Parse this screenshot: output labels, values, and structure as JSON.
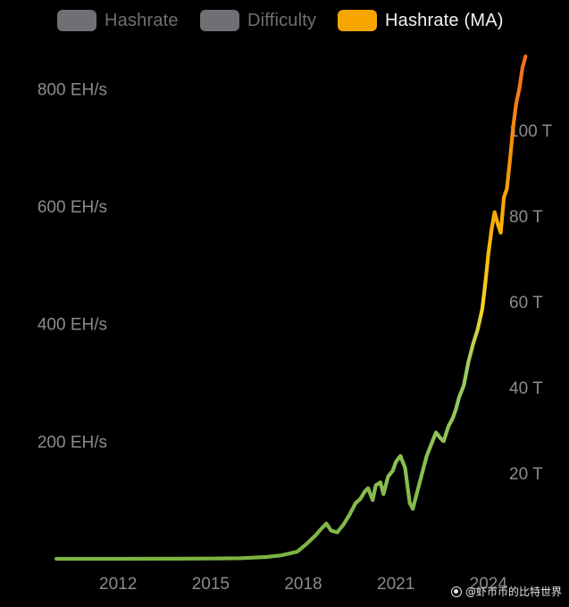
{
  "legend": {
    "hashrate": {
      "label": "Hashrate",
      "active": false,
      "color": "#6f6f74"
    },
    "difficulty": {
      "label": "Difficulty",
      "active": false,
      "color": "#6f6f74"
    },
    "hashrate_ma": {
      "label": "Hashrate (MA)",
      "active": true,
      "color": "#f7a600"
    }
  },
  "watermark": "@虾币币的比特世界",
  "chart_data": {
    "type": "line",
    "series": [
      {
        "name": "Hashrate (MA)",
        "gradient": [
          "#7cb342",
          "#9ccc65",
          "#f9d423",
          "#f7a600",
          "#f46b1e"
        ],
        "points": [
          [
            2010.0,
            0
          ],
          [
            2012.0,
            0
          ],
          [
            2014.0,
            0.2
          ],
          [
            2015.0,
            0.4
          ],
          [
            2016.0,
            1.0
          ],
          [
            2016.8,
            3
          ],
          [
            2017.3,
            6
          ],
          [
            2017.8,
            12
          ],
          [
            2018.1,
            25
          ],
          [
            2018.4,
            40
          ],
          [
            2018.6,
            52
          ],
          [
            2018.75,
            60
          ],
          [
            2018.9,
            48
          ],
          [
            2019.1,
            45
          ],
          [
            2019.3,
            58
          ],
          [
            2019.5,
            75
          ],
          [
            2019.7,
            95
          ],
          [
            2019.85,
            102
          ],
          [
            2020.0,
            115
          ],
          [
            2020.1,
            120
          ],
          [
            2020.25,
            100
          ],
          [
            2020.35,
            125
          ],
          [
            2020.5,
            130
          ],
          [
            2020.6,
            110
          ],
          [
            2020.75,
            140
          ],
          [
            2020.9,
            150
          ],
          [
            2021.0,
            165
          ],
          [
            2021.15,
            175
          ],
          [
            2021.3,
            155
          ],
          [
            2021.45,
            95
          ],
          [
            2021.55,
            85
          ],
          [
            2021.7,
            115
          ],
          [
            2021.85,
            145
          ],
          [
            2022.0,
            175
          ],
          [
            2022.15,
            195
          ],
          [
            2022.3,
            215
          ],
          [
            2022.45,
            205
          ],
          [
            2022.55,
            200
          ],
          [
            2022.7,
            225
          ],
          [
            2022.85,
            240
          ],
          [
            2022.95,
            255
          ],
          [
            2023.05,
            275
          ],
          [
            2023.2,
            295
          ],
          [
            2023.35,
            335
          ],
          [
            2023.5,
            365
          ],
          [
            2023.65,
            390
          ],
          [
            2023.8,
            425
          ],
          [
            2023.9,
            470
          ],
          [
            2024.0,
            520
          ],
          [
            2024.1,
            560
          ],
          [
            2024.2,
            590
          ],
          [
            2024.3,
            570
          ],
          [
            2024.4,
            555
          ],
          [
            2024.5,
            615
          ],
          [
            2024.6,
            630
          ],
          [
            2024.7,
            680
          ],
          [
            2024.8,
            735
          ],
          [
            2024.9,
            775
          ],
          [
            2025.0,
            800
          ],
          [
            2025.1,
            835
          ],
          [
            2025.2,
            855
          ]
        ]
      }
    ],
    "x_ticks": [
      "2012",
      "2015",
      "2018",
      "2021",
      "2024"
    ],
    "x_tick_values": [
      2012,
      2015,
      2018,
      2021,
      2024
    ],
    "y_left_ticks": [
      "200 EH/s",
      "400 EH/s",
      "600 EH/s",
      "800 EH/s"
    ],
    "y_left_tick_values": [
      200,
      400,
      600,
      800
    ],
    "y_right_ticks": [
      "20 T",
      "40 T",
      "60 T",
      "80 T",
      "100 T"
    ],
    "y_right_tick_values": [
      20,
      40,
      60,
      80,
      100
    ],
    "xlim": [
      2009.1,
      2025.25
    ],
    "ylim_left": [
      0,
      875
    ],
    "ylim_right": [
      0,
      120
    ],
    "grid": false,
    "legend_position": "top"
  }
}
